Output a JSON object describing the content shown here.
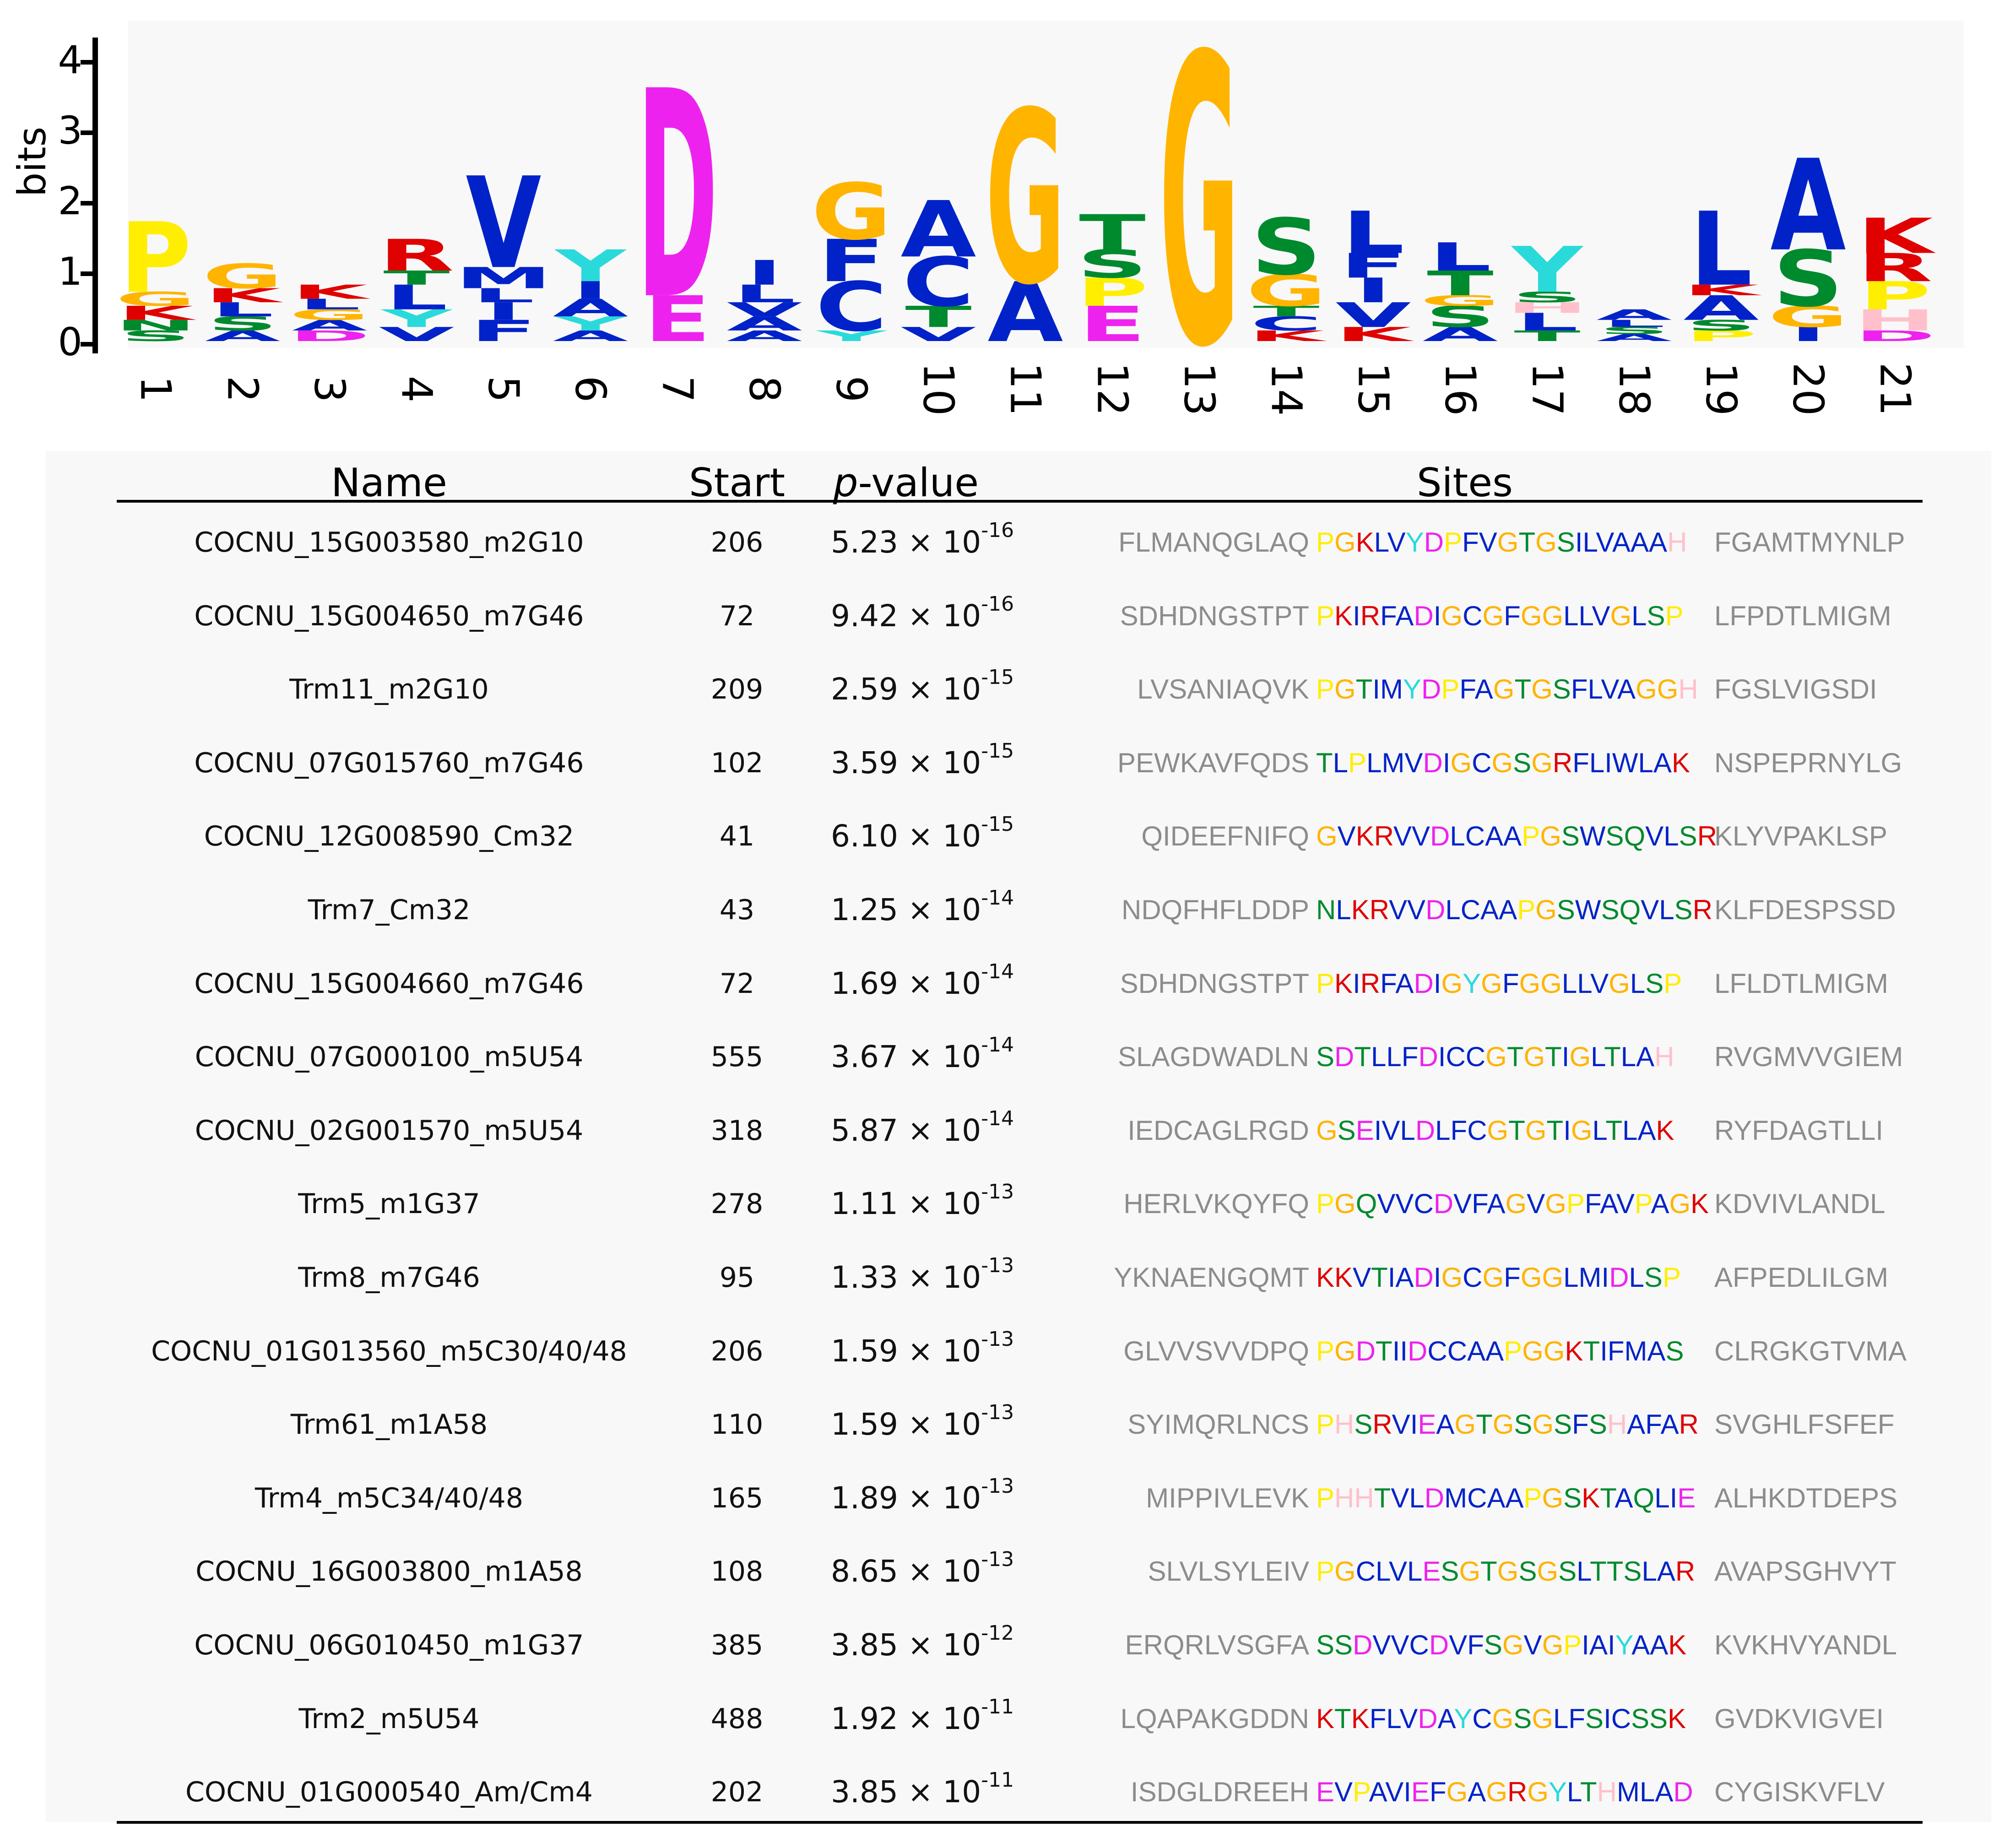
{
  "logo": {
    "y_axis_label": "bits",
    "y_ticks": [
      "0",
      "1",
      "2",
      "3",
      "4"
    ],
    "positions": [
      "1",
      "2",
      "3",
      "4",
      "5",
      "6",
      "7",
      "8",
      "9",
      "10",
      "11",
      "12",
      "13",
      "14",
      "15",
      "16",
      "17",
      "18",
      "19",
      "20",
      "21"
    ],
    "colors": {
      "A": "#0022c8",
      "C": "#0022c8",
      "F": "#0022c8",
      "I": "#0022c8",
      "L": "#0022c8",
      "M": "#0022c8",
      "V": "#0022c8",
      "W": "#0022c8",
      "G": "#ffb400",
      "P": "#ffee00",
      "S": "#008a2e",
      "T": "#008a2e",
      "N": "#008a2e",
      "Q": "#008a2e",
      "D": "#ee22ee",
      "E": "#ee22ee",
      "K": "#e00000",
      "R": "#e00000",
      "H": "#ffc0cb",
      "Y": "#2adada"
    },
    "stacks": [
      [
        {
          "l": "S",
          "h": 0.15
        },
        {
          "l": "N",
          "h": 0.15
        },
        {
          "l": "K",
          "h": 0.2
        },
        {
          "l": "G",
          "h": 0.2
        },
        {
          "l": "P",
          "h": 1.0
        }
      ],
      [
        {
          "l": "A",
          "h": 0.15
        },
        {
          "l": "S",
          "h": 0.2
        },
        {
          "l": "L",
          "h": 0.2
        },
        {
          "l": "K",
          "h": 0.2
        },
        {
          "l": "G",
          "h": 0.35
        }
      ],
      [
        {
          "l": "D",
          "h": 0.15
        },
        {
          "l": "A",
          "h": 0.15
        },
        {
          "l": "G",
          "h": 0.15
        },
        {
          "l": "L",
          "h": 0.15
        },
        {
          "l": "K",
          "h": 0.2
        }
      ],
      [
        {
          "l": "V",
          "h": 0.2
        },
        {
          "l": "Y",
          "h": 0.25
        },
        {
          "l": "L",
          "h": 0.35
        },
        {
          "l": "T",
          "h": 0.2
        },
        {
          "l": "R",
          "h": 0.45
        }
      ],
      [
        {
          "l": "F",
          "h": 0.3
        },
        {
          "l": "I",
          "h": 0.25
        },
        {
          "l": "L",
          "h": 0.2
        },
        {
          "l": "M",
          "h": 0.3
        },
        {
          "l": "V",
          "h": 1.3
        }
      ],
      [
        {
          "l": "A",
          "h": 0.15
        },
        {
          "l": "Y",
          "h": 0.2
        },
        {
          "l": "A",
          "h": 0.25
        },
        {
          "l": "I",
          "h": 0.25
        },
        {
          "l": "Y",
          "h": 0.45
        }
      ],
      [
        {
          "l": "E",
          "h": 0.65
        },
        {
          "l": "D",
          "h": 2.95
        }
      ],
      [
        {
          "l": "A",
          "h": 0.15
        },
        {
          "l": "A",
          "h": 0.2
        },
        {
          "l": "V",
          "h": 0.2
        },
        {
          "l": "L",
          "h": 0.25
        },
        {
          "l": "I",
          "h": 0.35
        }
      ],
      [
        {
          "l": "Y",
          "h": 0.15
        },
        {
          "l": "C",
          "h": 0.7
        },
        {
          "l": "F",
          "h": 0.6
        },
        {
          "l": "G",
          "h": 0.8
        }
      ],
      [
        {
          "l": "V",
          "h": 0.2
        },
        {
          "l": "T",
          "h": 0.3
        },
        {
          "l": "C",
          "h": 0.7
        },
        {
          "l": "A",
          "h": 0.8
        }
      ],
      [
        {
          "l": "A",
          "h": 0.85
        },
        {
          "l": "G",
          "h": 2.45
        }
      ],
      [
        {
          "l": "E",
          "h": 0.5
        },
        {
          "l": "P",
          "h": 0.4
        },
        {
          "l": "S",
          "h": 0.4
        },
        {
          "l": "T",
          "h": 0.5
        }
      ],
      [
        {
          "l": "G",
          "h": 4.1
        }
      ],
      [
        {
          "l": "K",
          "h": 0.15
        },
        {
          "l": "C",
          "h": 0.2
        },
        {
          "l": "T",
          "h": 0.15
        },
        {
          "l": "G",
          "h": 0.45
        },
        {
          "l": "S",
          "h": 0.8
        }
      ],
      [
        {
          "l": "K",
          "h": 0.2
        },
        {
          "l": "V",
          "h": 0.35
        },
        {
          "l": "I",
          "h": 0.35
        },
        {
          "l": "F",
          "h": 0.35
        },
        {
          "l": "L",
          "h": 0.6
        }
      ],
      [
        {
          "l": "A",
          "h": 0.2
        },
        {
          "l": "S",
          "h": 0.3
        },
        {
          "l": "G",
          "h": 0.15
        },
        {
          "l": "T",
          "h": 0.35
        },
        {
          "l": "L",
          "h": 0.4
        }
      ],
      [
        {
          "l": "T",
          "h": 0.15
        },
        {
          "l": "L",
          "h": 0.25
        },
        {
          "l": "H",
          "h": 0.15
        },
        {
          "l": "S",
          "h": 0.15
        },
        {
          "l": "Y",
          "h": 0.65
        }
      ],
      [
        {
          "l": "A",
          "h": 0.1
        },
        {
          "l": "S",
          "h": 0.1
        },
        {
          "l": "L",
          "h": 0.1
        },
        {
          "l": "A",
          "h": 0.15
        }
      ],
      [
        {
          "l": "P",
          "h": 0.15
        },
        {
          "l": "S",
          "h": 0.15
        },
        {
          "l": "A",
          "h": 0.35
        },
        {
          "l": "K",
          "h": 0.15
        },
        {
          "l": "L",
          "h": 1.05
        }
      ],
      [
        {
          "l": "I",
          "h": 0.2
        },
        {
          "l": "G",
          "h": 0.3
        },
        {
          "l": "S",
          "h": 0.8
        },
        {
          "l": "A",
          "h": 1.3
        }
      ],
      [
        {
          "l": "D",
          "h": 0.15
        },
        {
          "l": "H",
          "h": 0.3
        },
        {
          "l": "P",
          "h": 0.4
        },
        {
          "l": "R",
          "h": 0.4
        },
        {
          "l": "K",
          "h": 0.5
        }
      ]
    ]
  },
  "table": {
    "headers": {
      "name": "Name",
      "start": "Start",
      "p_italic": "p",
      "p_rest": "-value",
      "sites": "Sites"
    },
    "rows": [
      {
        "name": "COCNU_15G003580_m2G10",
        "start": "206",
        "p_mant": "5.23",
        "p_exp": "-16",
        "left": "FLMANQGLAQ",
        "site": "PGKLVYDPFVGTGSILVAAAH",
        "right": "FGAMTMYNLP"
      },
      {
        "name": "COCNU_15G004650_m7G46",
        "start": "72",
        "p_mant": "9.42",
        "p_exp": "-16",
        "left": "SDHDNGSTPT",
        "site": "PKIRFADIGCGFGGLLVGLSP",
        "right": "LFPDTLMIGM"
      },
      {
        "name": "Trm11_m2G10",
        "start": "209",
        "p_mant": "2.59",
        "p_exp": "-15",
        "left": "LVSANIAQVK",
        "site": "PGTIMYDPFAGTGSFLVAGGH",
        "right": "FGSLVIGSDI"
      },
      {
        "name": "COCNU_07G015760_m7G46",
        "start": "102",
        "p_mant": "3.59",
        "p_exp": "-15",
        "left": "PEWKAVFQDS",
        "site": "TLPLMVDIGCGSGRFLIWLAK",
        "right": "NSPEPRNYLG"
      },
      {
        "name": "COCNU_12G008590_Cm32",
        "start": "41",
        "p_mant": "6.10",
        "p_exp": "-15",
        "left": "QIDEEFNIFQ",
        "site": "GVKRVVDLCAAPGSWSQVLSR",
        "right": "KLYVPAKLSP"
      },
      {
        "name": "Trm7_Cm32",
        "start": "43",
        "p_mant": "1.25",
        "p_exp": "-14",
        "left": "NDQFHFLDDP",
        "site": "NLKRVVDLCAAPGSWSQVLSR",
        "right": "KLFDESPSSD"
      },
      {
        "name": "COCNU_15G004660_m7G46",
        "start": "72",
        "p_mant": "1.69",
        "p_exp": "-14",
        "left": "SDHDNGSTPT",
        "site": "PKIRFADIGYGFGGLLVGLSP",
        "right": "LFLDTLMIGM"
      },
      {
        "name": "COCNU_07G000100_m5U54",
        "start": "555",
        "p_mant": "3.67",
        "p_exp": "-14",
        "left": "SLAGDWADLN",
        "site": "SDTLLFDICCGTGTIGLTLAH",
        "right": "RVGMVVGIEM"
      },
      {
        "name": "COCNU_02G001570_m5U54",
        "start": "318",
        "p_mant": "5.87",
        "p_exp": "-14",
        "left": "IEDCAGLRGD",
        "site": "GSEIVLDLFCGTGTIGLTLAK",
        "right": "RYFDAGTLLI"
      },
      {
        "name": "Trm5_m1G37",
        "start": "278",
        "p_mant": "1.11",
        "p_exp": "-13",
        "left": "HERLVKQYFQ",
        "site": "PGQVVCDVFAGVGPFAVPAGK",
        "right": "KDVIVLANDL"
      },
      {
        "name": "Trm8_m7G46",
        "start": "95",
        "p_mant": "1.33",
        "p_exp": "-13",
        "left": "YKNAENGQMT",
        "site": "KKVTIADIGCGFGGLMIDLSP",
        "right": "AFPEDLILGM"
      },
      {
        "name": "COCNU_01G013560_m5C30/40/48",
        "start": "206",
        "p_mant": "1.59",
        "p_exp": "-13",
        "left": "GLVVSVVDPQ",
        "site": "PGDTIIDCCAAPGGKTIFMAS",
        "right": "CLRGKGTVMA"
      },
      {
        "name": "Trm61_m1A58",
        "start": "110",
        "p_mant": "1.59",
        "p_exp": "-13",
        "left": "SYIMQRLNCS",
        "site": "PHSRVIEAGTGSGSFSHAFAR",
        "right": "SVGHLFSFEF"
      },
      {
        "name": "Trm4_m5C34/40/48",
        "start": "165",
        "p_mant": "1.89",
        "p_exp": "-13",
        "left": "MIPPIVLEVK",
        "site": "PHHTVLDMCAAPGSKTAQLIE",
        "right": "ALHKDTDEPS"
      },
      {
        "name": "COCNU_16G003800_m1A58",
        "start": "108",
        "p_mant": "8.65",
        "p_exp": "-13",
        "left": "SLVLSYLEIV",
        "site": "PGCLVLESGTGSGSLTTSLAR",
        "right": "AVAPSGHVYT"
      },
      {
        "name": "COCNU_06G010450_m1G37",
        "start": "385",
        "p_mant": "3.85",
        "p_exp": "-12",
        "left": "ERQRLVSGFA",
        "site": "SSDVVCDVFSGVGPIAIYAAK",
        "right": "KVKHVYANDL"
      },
      {
        "name": "Trm2_m5U54",
        "start": "488",
        "p_mant": "1.92",
        "p_exp": "-11",
        "left": "LQAPAKGDDN",
        "site": "KTKFLVDAYCGSGLFSICSSK",
        "right": "GVDKVIGVEI"
      },
      {
        "name": "COCNU_01G000540_Am/Cm4",
        "start": "202",
        "p_mant": "3.85",
        "p_exp": "-11",
        "left": "ISDGLDREEH",
        "site": "EVPAVIEFGAGRGYLTHMLAD",
        "right": "CYGISKVFLV"
      }
    ]
  }
}
